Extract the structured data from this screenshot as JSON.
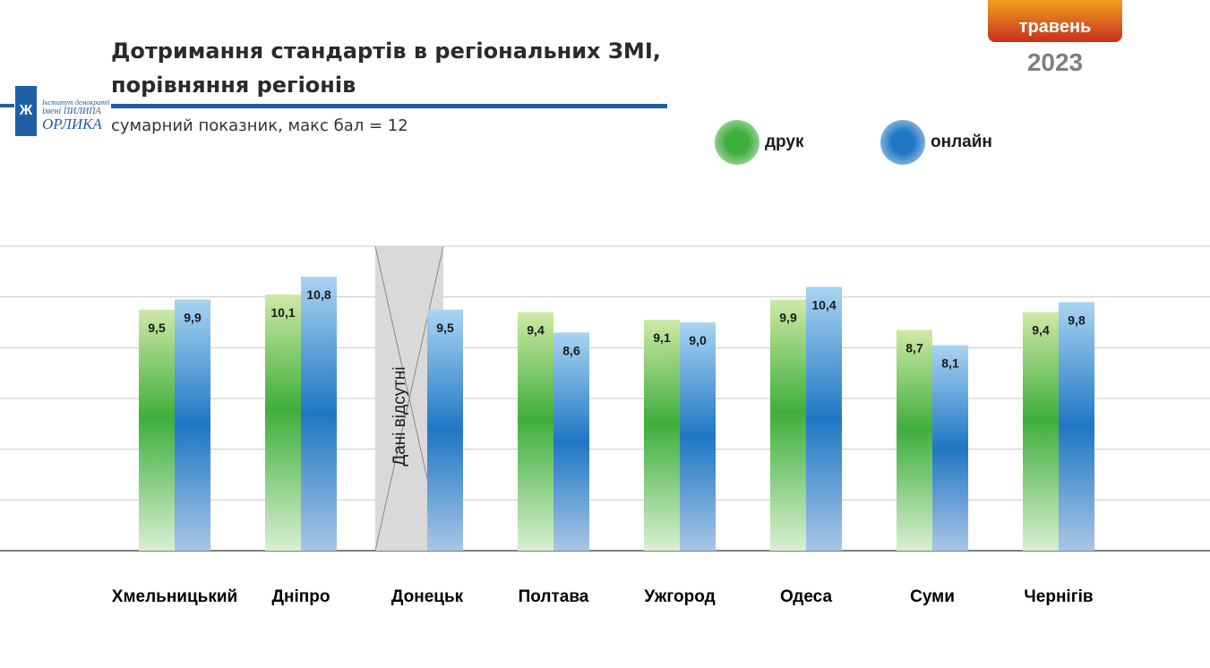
{
  "header": {
    "title_line1": "Дотримання стандартів в регіональних ЗМІ,",
    "title_line2": "порівняння регіонів",
    "subtitle": "сумарний показник, макс бал = 12",
    "badge": "травень",
    "year": "2023"
  },
  "logo": {
    "line1": "Інститут демократії",
    "line2": "імені ПИЛИПА",
    "line3": "ОРЛИКА"
  },
  "colors": {
    "print": "#3fae3c",
    "online": "#1f77c4",
    "accent": "#1f5fa8",
    "badge_top": "#f0a020",
    "badge_bottom": "#c8301e",
    "year": "#7f7f7f",
    "grid": "#c8c8c8"
  },
  "chart_data": {
    "type": "bar",
    "title": "Дотримання стандартів в регіональних ЗМІ, порівняння регіонів",
    "subtitle": "сумарний показник, макс бал = 12",
    "categories": [
      "Хмельницький",
      "Дніпро",
      "Донецьк",
      "Полтава",
      "Ужгород",
      "Одеса",
      "Суми",
      "Чернігів"
    ],
    "series": [
      {
        "name": "друк",
        "values": [
          9.5,
          10.1,
          null,
          9.4,
          9.1,
          9.9,
          8.7,
          9.4
        ],
        "labels": [
          "9,5",
          "10,1",
          "",
          "9,4",
          "9,1",
          "9,9",
          "8,7",
          "9,4"
        ]
      },
      {
        "name": "онлайн",
        "values": [
          9.9,
          10.8,
          9.5,
          8.6,
          9.0,
          10.4,
          8.1,
          9.8
        ],
        "labels": [
          "9,9",
          "10,8",
          "9,5",
          "8,6",
          "9,0",
          "10,4",
          "8,1",
          "9,8"
        ]
      }
    ],
    "ylim": [
      0,
      12
    ],
    "ytick_step": 2,
    "grid": true,
    "legend_position": "top-right",
    "missing_note": "Дані відсутні"
  }
}
